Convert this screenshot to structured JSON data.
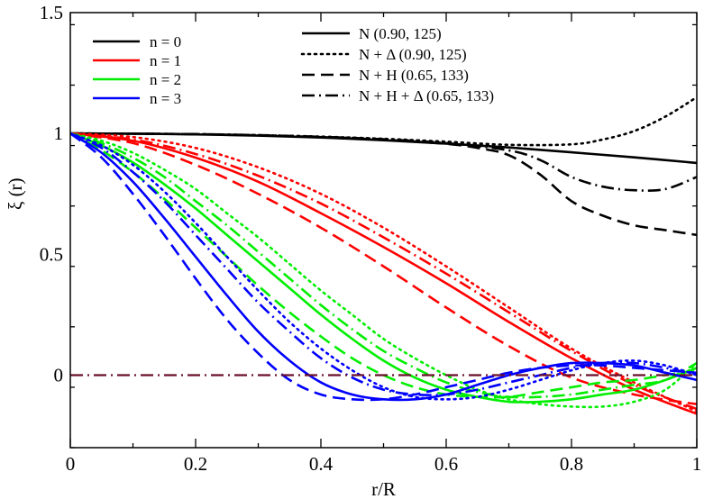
{
  "chart_data": {
    "type": "line",
    "title": "",
    "xlabel": "r/R",
    "ylabel": "ξ (r)",
    "xlim": [
      0,
      1
    ],
    "ylim": [
      -0.3,
      1.5
    ],
    "grid": false,
    "x_ticks": [
      {
        "value": 0,
        "label": "0"
      },
      {
        "value": 0.2,
        "label": "0.2"
      },
      {
        "value": 0.4,
        "label": "0.4"
      },
      {
        "value": 0.6,
        "label": "0.6"
      },
      {
        "value": 0.8,
        "label": "0.8"
      },
      {
        "value": 1,
        "label": "1"
      }
    ],
    "y_ticks": [
      {
        "value": 0,
        "label": "0"
      },
      {
        "value": 0.5,
        "label": "0.5"
      },
      {
        "value": 1,
        "label": "1"
      },
      {
        "value": 1.5,
        "label": "1.5"
      }
    ],
    "colors": {
      "n0": "#000000",
      "n1": "#ff0000",
      "n2": "#00ee00",
      "n3": "#0000ff",
      "zero_line": "#6b0f2a"
    },
    "legend_n": [
      {
        "label": "n = 0",
        "color": "#000000"
      },
      {
        "label": "n = 1",
        "color": "#ff0000"
      },
      {
        "label": "n = 2",
        "color": "#00ee00"
      },
      {
        "label": "n = 3",
        "color": "#0000ff"
      }
    ],
    "legend_models": [
      {
        "label": "N (0.90, 125)",
        "style": "solid"
      },
      {
        "label": "N + Δ (0.90, 125)",
        "style": "dotted"
      },
      {
        "label": "N + H (0.65, 133)",
        "style": "dashed"
      },
      {
        "label": "N + H + Δ (0.65, 133)",
        "style": "dashdot"
      }
    ],
    "zero_line": {
      "y": 0,
      "style": "dashdot",
      "color": "#6b0f2a"
    },
    "series": [
      {
        "name": "n=0 N",
        "n": 0,
        "model": "N",
        "color": "#000000",
        "style": "solid",
        "x": [
          0,
          0.1,
          0.2,
          0.3,
          0.4,
          0.5,
          0.6,
          0.7,
          0.8,
          0.9,
          1.0
        ],
        "y": [
          1.0,
          0.999,
          0.996,
          0.991,
          0.983,
          0.972,
          0.958,
          0.942,
          0.922,
          0.901,
          0.878
        ]
      },
      {
        "name": "n=0 N+Δ",
        "n": 0,
        "model": "N + Δ",
        "color": "#000000",
        "style": "dotted",
        "x": [
          0,
          0.1,
          0.2,
          0.3,
          0.4,
          0.5,
          0.6,
          0.7,
          0.8,
          0.85,
          0.9,
          0.95,
          1.0
        ],
        "y": [
          1.0,
          0.999,
          0.997,
          0.993,
          0.987,
          0.978,
          0.966,
          0.953,
          0.955,
          0.975,
          1.01,
          1.07,
          1.15
        ]
      },
      {
        "name": "n=0 N+H",
        "n": 0,
        "model": "N + H",
        "color": "#000000",
        "style": "dashed",
        "x": [
          0,
          0.1,
          0.2,
          0.3,
          0.4,
          0.5,
          0.6,
          0.65,
          0.7,
          0.75,
          0.8,
          0.85,
          0.9,
          0.95,
          1.0
        ],
        "y": [
          1.0,
          0.999,
          0.997,
          0.992,
          0.985,
          0.974,
          0.957,
          0.94,
          0.91,
          0.83,
          0.72,
          0.66,
          0.62,
          0.6,
          0.58
        ]
      },
      {
        "name": "n=0 N+H+Δ",
        "n": 0,
        "model": "N + H + Δ",
        "color": "#000000",
        "style": "dashdot",
        "x": [
          0,
          0.1,
          0.2,
          0.3,
          0.4,
          0.5,
          0.6,
          0.7,
          0.75,
          0.8,
          0.85,
          0.9,
          0.95,
          1.0
        ],
        "y": [
          1.0,
          0.999,
          0.997,
          0.993,
          0.986,
          0.976,
          0.96,
          0.93,
          0.89,
          0.82,
          0.78,
          0.765,
          0.77,
          0.82
        ]
      },
      {
        "name": "n=1 N",
        "n": 1,
        "model": "N",
        "color": "#ff0000",
        "style": "solid",
        "x": [
          0,
          0.1,
          0.2,
          0.3,
          0.4,
          0.5,
          0.6,
          0.7,
          0.8,
          0.9,
          1.0
        ],
        "y": [
          1.0,
          0.97,
          0.9,
          0.8,
          0.67,
          0.53,
          0.38,
          0.22,
          0.07,
          -0.06,
          -0.16
        ]
      },
      {
        "name": "n=1 N+Δ",
        "n": 1,
        "model": "N + Δ",
        "color": "#ff0000",
        "style": "dotted",
        "x": [
          0,
          0.1,
          0.2,
          0.3,
          0.4,
          0.5,
          0.6,
          0.7,
          0.8,
          0.9,
          1.0
        ],
        "y": [
          1.0,
          0.985,
          0.94,
          0.86,
          0.75,
          0.61,
          0.45,
          0.28,
          0.11,
          -0.03,
          -0.15
        ]
      },
      {
        "name": "n=1 N+H",
        "n": 1,
        "model": "N + H",
        "color": "#ff0000",
        "style": "dashed",
        "x": [
          0,
          0.1,
          0.2,
          0.3,
          0.4,
          0.5,
          0.6,
          0.7,
          0.8,
          0.9,
          1.0
        ],
        "y": [
          1.0,
          0.96,
          0.87,
          0.75,
          0.61,
          0.45,
          0.28,
          0.12,
          -0.01,
          -0.08,
          -0.12
        ]
      },
      {
        "name": "n=1 N+H+Δ",
        "n": 1,
        "model": "N + H + Δ",
        "color": "#ff0000",
        "style": "dashdot",
        "x": [
          0,
          0.1,
          0.2,
          0.3,
          0.4,
          0.5,
          0.6,
          0.7,
          0.8,
          0.9,
          1.0
        ],
        "y": [
          1.0,
          0.975,
          0.915,
          0.825,
          0.71,
          0.57,
          0.42,
          0.26,
          0.1,
          -0.04,
          -0.14
        ]
      },
      {
        "name": "n=2 N",
        "n": 2,
        "model": "N",
        "color": "#00ee00",
        "style": "solid",
        "x": [
          0,
          0.05,
          0.1,
          0.15,
          0.2,
          0.25,
          0.3,
          0.35,
          0.4,
          0.45,
          0.5,
          0.55,
          0.6,
          0.65,
          0.7,
          0.75,
          0.8,
          0.85,
          0.9,
          0.95,
          1.0
        ],
        "y": [
          1.0,
          0.95,
          0.88,
          0.79,
          0.69,
          0.58,
          0.47,
          0.36,
          0.25,
          0.15,
          0.06,
          -0.01,
          -0.06,
          -0.09,
          -0.11,
          -0.11,
          -0.1,
          -0.08,
          -0.06,
          -0.02,
          0.03
        ]
      },
      {
        "name": "n=2 N+Δ",
        "n": 2,
        "model": "N + Δ",
        "color": "#00ee00",
        "style": "dotted",
        "x": [
          0,
          0.05,
          0.1,
          0.15,
          0.2,
          0.25,
          0.3,
          0.35,
          0.4,
          0.45,
          0.5,
          0.55,
          0.6,
          0.65,
          0.7,
          0.75,
          0.8,
          0.85,
          0.9,
          0.95,
          1.0
        ],
        "y": [
          1.0,
          0.97,
          0.92,
          0.85,
          0.77,
          0.67,
          0.57,
          0.46,
          0.35,
          0.25,
          0.15,
          0.07,
          0.0,
          -0.06,
          -0.1,
          -0.12,
          -0.13,
          -0.13,
          -0.11,
          -0.06,
          0.05
        ]
      },
      {
        "name": "n=2 N+H",
        "n": 2,
        "model": "N + H",
        "color": "#00ee00",
        "style": "dashed",
        "x": [
          0,
          0.05,
          0.1,
          0.15,
          0.2,
          0.25,
          0.3,
          0.35,
          0.4,
          0.45,
          0.5,
          0.55,
          0.6,
          0.65,
          0.7,
          0.75,
          0.8,
          0.85,
          0.9,
          0.95,
          1.0
        ],
        "y": [
          1.0,
          0.93,
          0.84,
          0.73,
          0.61,
          0.49,
          0.37,
          0.26,
          0.16,
          0.07,
          0.0,
          -0.05,
          -0.08,
          -0.09,
          -0.09,
          -0.07,
          -0.05,
          -0.03,
          -0.02,
          0.0,
          0.02
        ]
      },
      {
        "name": "n=2 N+H+Δ",
        "n": 2,
        "model": "N + H + Δ",
        "color": "#00ee00",
        "style": "dashdot",
        "x": [
          0,
          0.05,
          0.1,
          0.15,
          0.2,
          0.25,
          0.3,
          0.35,
          0.4,
          0.45,
          0.5,
          0.55,
          0.6,
          0.65,
          0.7,
          0.75,
          0.8,
          0.85,
          0.9,
          0.95,
          1.0
        ],
        "y": [
          1.0,
          0.96,
          0.9,
          0.82,
          0.72,
          0.62,
          0.51,
          0.4,
          0.29,
          0.19,
          0.1,
          0.03,
          -0.03,
          -0.07,
          -0.09,
          -0.09,
          -0.08,
          -0.06,
          -0.04,
          -0.02,
          0.05
        ]
      },
      {
        "name": "n=3 N",
        "n": 3,
        "model": "N",
        "color": "#0000ff",
        "style": "solid",
        "x": [
          0,
          0.05,
          0.1,
          0.15,
          0.2,
          0.25,
          0.3,
          0.35,
          0.4,
          0.45,
          0.5,
          0.55,
          0.6,
          0.65,
          0.7,
          0.75,
          0.8,
          0.85,
          0.9,
          0.95,
          1.0
        ],
        "y": [
          1.0,
          0.92,
          0.8,
          0.65,
          0.49,
          0.33,
          0.18,
          0.06,
          -0.03,
          -0.08,
          -0.1,
          -0.1,
          -0.08,
          -0.04,
          0.0,
          0.03,
          0.05,
          0.05,
          0.04,
          0.01,
          -0.02
        ]
      },
      {
        "name": "n=3 N+Δ",
        "n": 3,
        "model": "N + Δ",
        "color": "#0000ff",
        "style": "dotted",
        "x": [
          0,
          0.05,
          0.1,
          0.15,
          0.2,
          0.25,
          0.3,
          0.35,
          0.4,
          0.45,
          0.5,
          0.55,
          0.6,
          0.65,
          0.7,
          0.75,
          0.8,
          0.85,
          0.9,
          0.95,
          1.0
        ],
        "y": [
          1.0,
          0.95,
          0.87,
          0.76,
          0.63,
          0.49,
          0.35,
          0.22,
          0.11,
          0.02,
          -0.05,
          -0.09,
          -0.1,
          -0.09,
          -0.06,
          -0.02,
          0.02,
          0.05,
          0.06,
          0.04,
          0.0
        ]
      },
      {
        "name": "n=3 N+H",
        "n": 3,
        "model": "N + H",
        "color": "#0000ff",
        "style": "dashed",
        "x": [
          0,
          0.05,
          0.1,
          0.15,
          0.2,
          0.25,
          0.3,
          0.35,
          0.4,
          0.45,
          0.5,
          0.55,
          0.6,
          0.65,
          0.7,
          0.75,
          0.8,
          0.85,
          0.9,
          0.95,
          1.0
        ],
        "y": [
          1.0,
          0.9,
          0.75,
          0.58,
          0.4,
          0.23,
          0.09,
          -0.02,
          -0.08,
          -0.1,
          -0.1,
          -0.08,
          -0.05,
          -0.02,
          0.01,
          0.03,
          0.04,
          0.04,
          0.03,
          0.02,
          0.01
        ]
      },
      {
        "name": "n=3 N+H+Δ",
        "n": 3,
        "model": "N + H + Δ",
        "color": "#0000ff",
        "style": "dashdot",
        "x": [
          0,
          0.05,
          0.1,
          0.15,
          0.2,
          0.25,
          0.3,
          0.35,
          0.4,
          0.45,
          0.5,
          0.55,
          0.6,
          0.65,
          0.7,
          0.75,
          0.8,
          0.85,
          0.9,
          0.95,
          1.0
        ],
        "y": [
          1.0,
          0.94,
          0.84,
          0.72,
          0.58,
          0.44,
          0.3,
          0.18,
          0.07,
          -0.01,
          -0.06,
          -0.08,
          -0.08,
          -0.06,
          -0.03,
          0.0,
          0.03,
          0.05,
          0.05,
          0.03,
          0.0
        ]
      }
    ]
  }
}
